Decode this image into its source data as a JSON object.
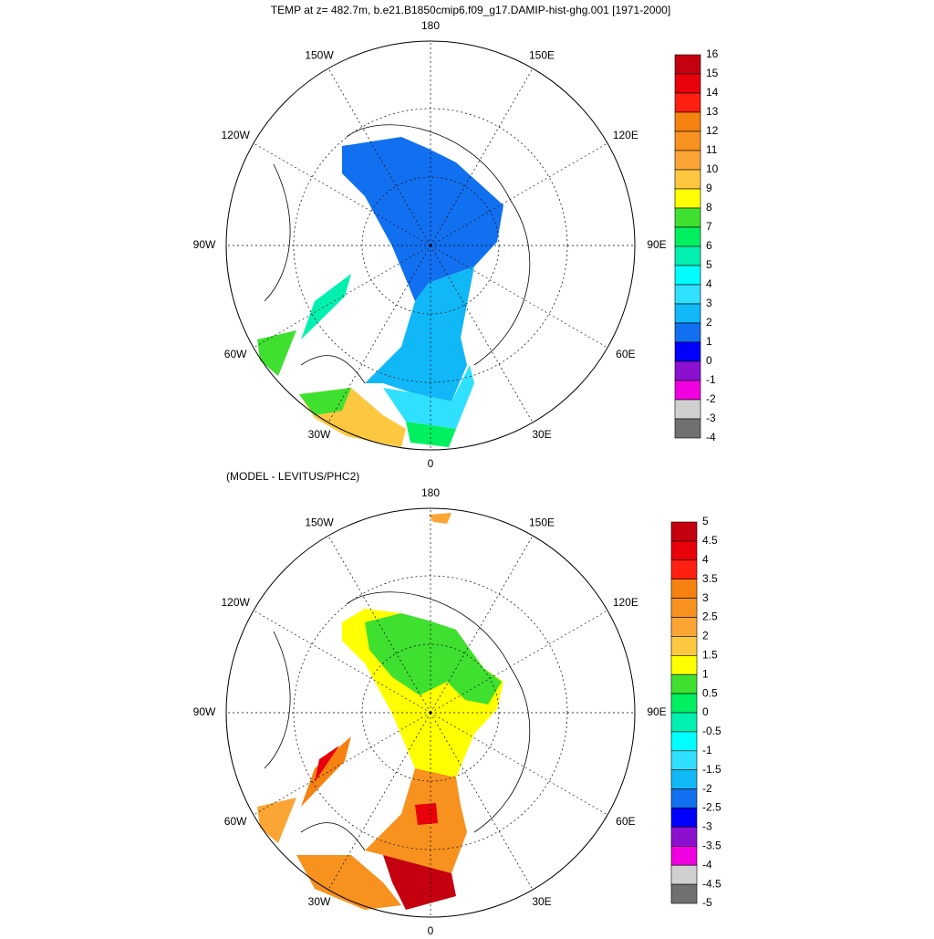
{
  "panels": [
    {
      "title": "TEMP at z= 482.7m, b.e21.B1850cmip6.f09_g17.DAMIP-hist-ghg.001 [1971-2000]",
      "lon_labels": [
        "180",
        "150E",
        "120E",
        "90E",
        "60E",
        "30E",
        "0",
        "30W",
        "60W",
        "90W",
        "120W",
        "150W"
      ],
      "colorbar": {
        "labels": [
          16,
          15,
          14,
          13,
          12,
          11,
          10,
          9,
          8,
          7,
          6,
          5,
          4,
          3,
          2,
          1,
          0,
          -1,
          -2,
          -3,
          -4
        ],
        "colors": [
          "#c4000f",
          "#e8000b",
          "#ff2010",
          "#f58210",
          "#f7921e",
          "#fba535",
          "#fdc840",
          "#ffff00",
          "#40e030",
          "#00f060",
          "#00f0b0",
          "#00ffff",
          "#30e0ff",
          "#10b8f8",
          "#1070f0",
          "#0000ff",
          "#8c10d0",
          "#f000e0",
          "#d0d0d0",
          "#707070"
        ]
      }
    },
    {
      "subtitle": "(MODEL - LEVITUS/PHC2)",
      "lon_labels": [
        "180",
        "150E",
        "120E",
        "90E",
        "60E",
        "30E",
        "0",
        "30W",
        "60W",
        "90W",
        "120W",
        "150W"
      ],
      "colorbar": {
        "labels": [
          5,
          4.5,
          4,
          3.5,
          3,
          2.5,
          2,
          1.5,
          1,
          0.5,
          0,
          -0.5,
          -1,
          -1.5,
          -2,
          -2.5,
          -3,
          -3.5,
          -4,
          -4.5,
          -5
        ],
        "colors": [
          "#c4000f",
          "#e8000b",
          "#ff2010",
          "#f58210",
          "#f7921e",
          "#fba535",
          "#fdc840",
          "#ffff00",
          "#40e030",
          "#00f060",
          "#00f0b0",
          "#00ffff",
          "#30e0ff",
          "#10b8f8",
          "#1070f0",
          "#0000ff",
          "#8c10d0",
          "#f000e0",
          "#d0d0d0",
          "#707070"
        ]
      }
    }
  ]
}
